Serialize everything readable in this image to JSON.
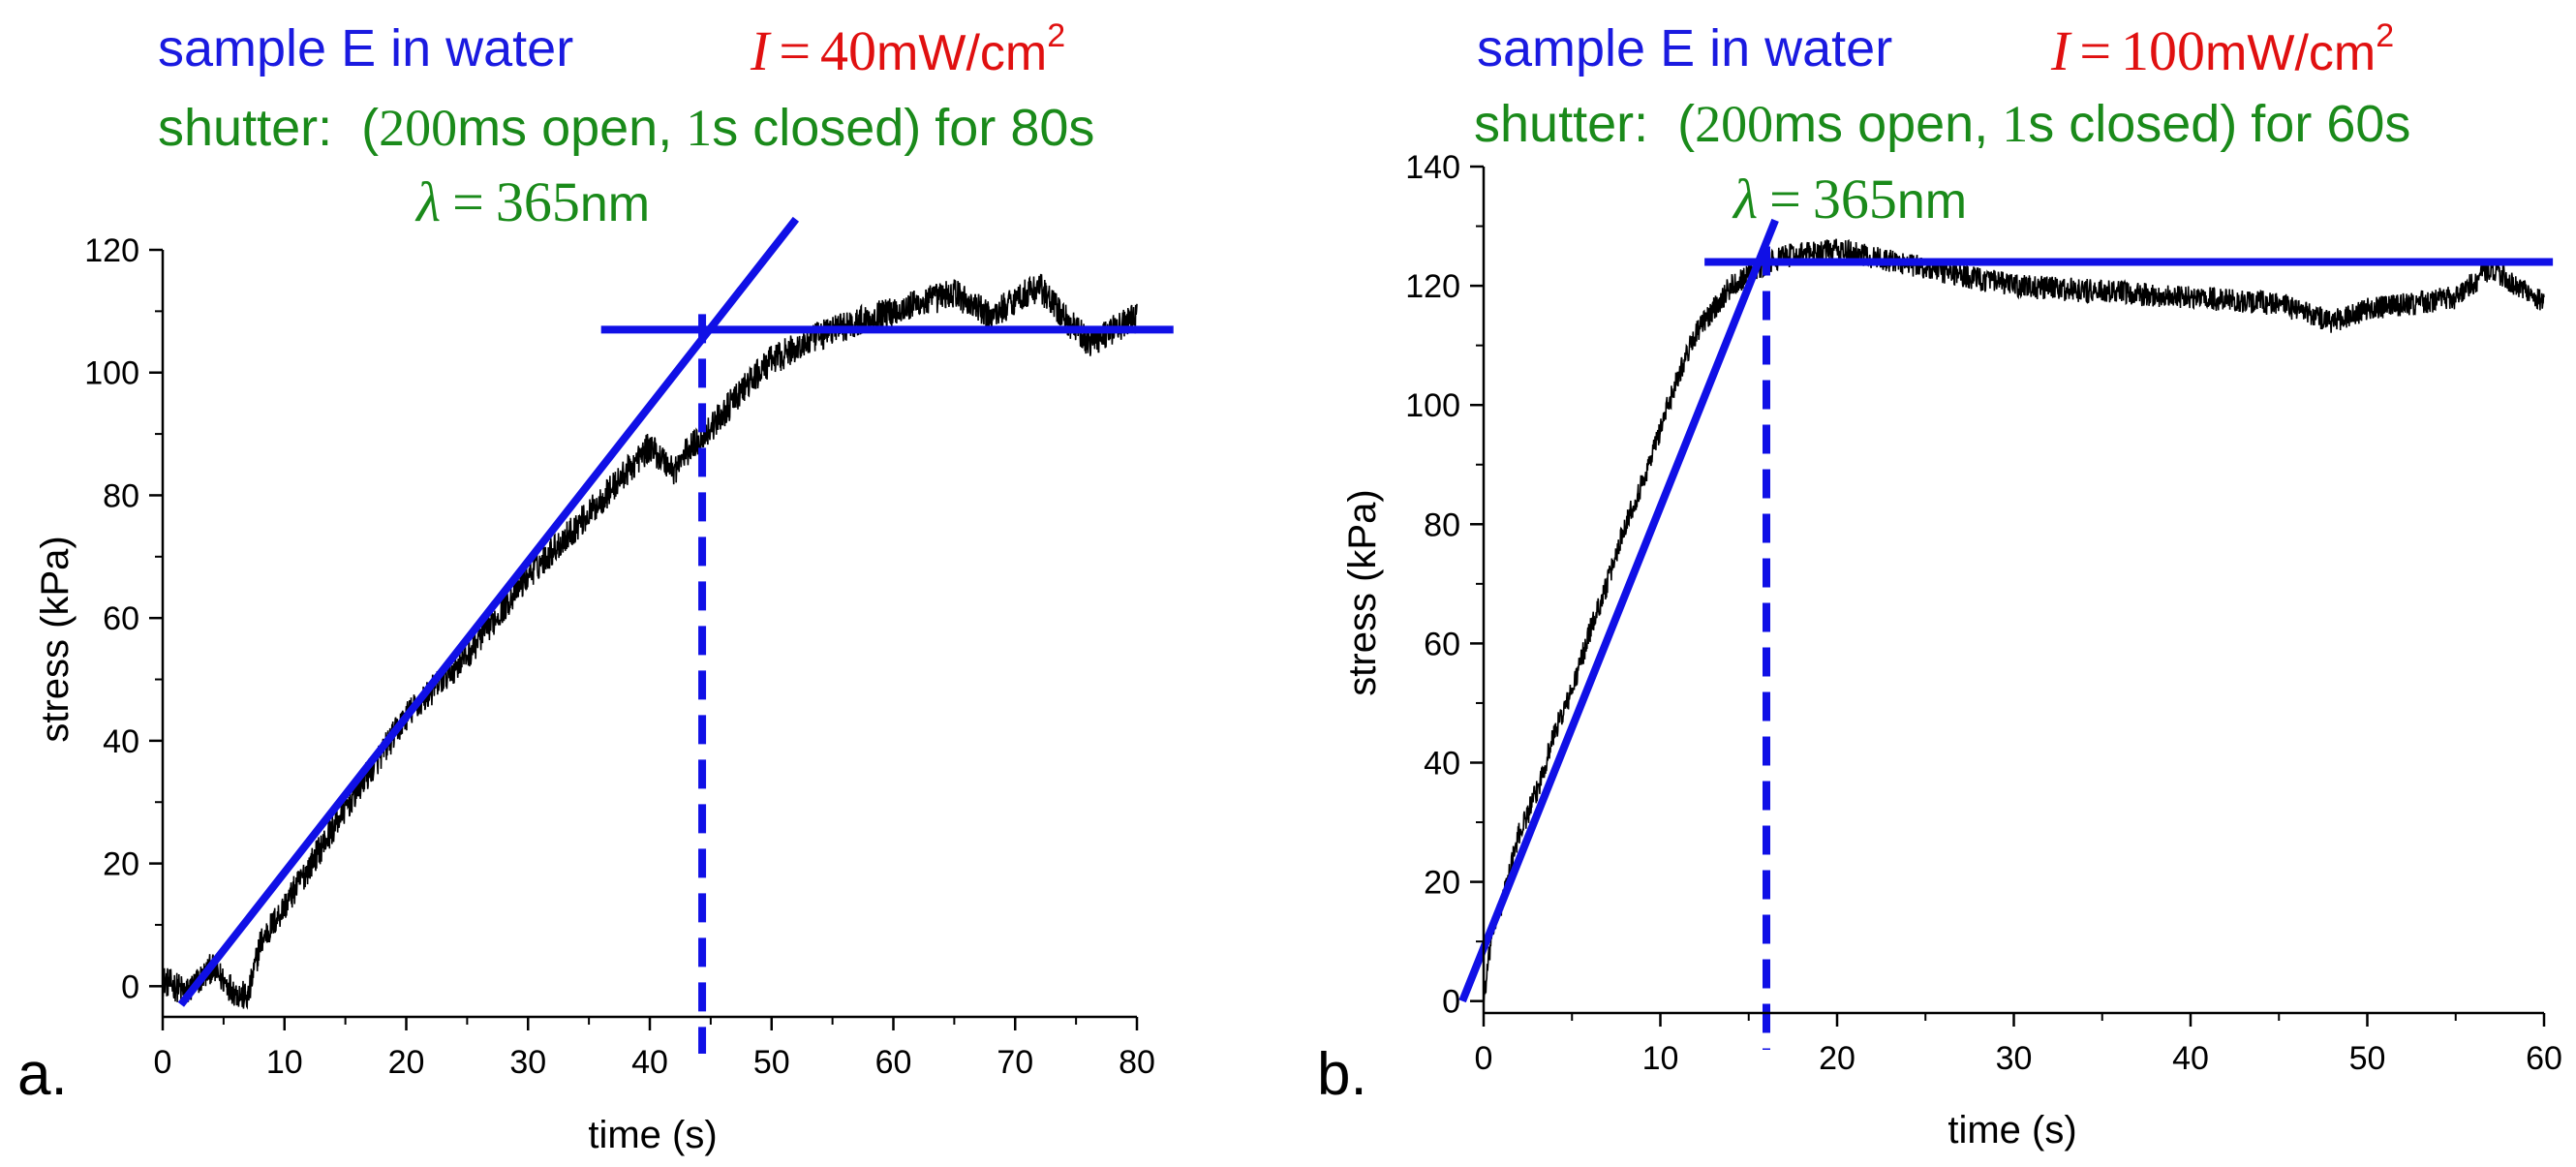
{
  "figure": {
    "colors": {
      "fit": "#1010e6",
      "title": "#1a1ae0",
      "intensity": "#e01010",
      "shutter": "#1a8a1a",
      "trace": "#000000",
      "axis": "#000000"
    }
  },
  "chart_data": [
    {
      "type": "line",
      "panel_label": "a.",
      "title": "sample E in water",
      "intensity": {
        "symbol": "I",
        "equals": "=",
        "value": "40",
        "unit": "mW/cm",
        "exponent": "2"
      },
      "shutter": {
        "prefix": "shutter:",
        "open_value": "200",
        "open_text": "ms open,",
        "closed_value": "1",
        "closed_text": "s closed)",
        "open_paren": "(",
        "for_text": "for 80s"
      },
      "wavelength": {
        "symbol": "λ",
        "equals": "=",
        "value": "365",
        "unit": "nm"
      },
      "xlabel": "time (s)",
      "ylabel": "stress (kPa)",
      "xlim": [
        0,
        80
      ],
      "ylim": [
        -5,
        120
      ],
      "xticks": [
        0,
        10,
        20,
        30,
        40,
        50,
        60,
        70,
        80
      ],
      "yticks": [
        0,
        20,
        40,
        60,
        80,
        100,
        120
      ],
      "xtick_labels": [
        "0",
        "10",
        "20",
        "30",
        "40",
        "50",
        "60",
        "70",
        "80"
      ],
      "ytick_labels": [
        "0",
        "20",
        "40",
        "60",
        "80",
        "100",
        "120"
      ],
      "trace_knots": [
        [
          0,
          1
        ],
        [
          2,
          -1
        ],
        [
          4,
          3
        ],
        [
          6,
          -1
        ],
        [
          7,
          -2
        ],
        [
          8,
          7
        ],
        [
          10,
          13
        ],
        [
          15,
          29
        ],
        [
          20,
          44
        ],
        [
          25,
          54
        ],
        [
          30,
          67
        ],
        [
          35,
          77
        ],
        [
          40,
          88
        ],
        [
          41,
          86
        ],
        [
          42,
          84
        ],
        [
          43,
          87
        ],
        [
          45,
          91
        ],
        [
          48,
          98
        ],
        [
          50,
          102
        ],
        [
          55,
          107
        ],
        [
          60,
          110
        ],
        [
          65,
          113
        ],
        [
          68,
          109
        ],
        [
          70,
          112
        ],
        [
          72,
          114
        ],
        [
          74,
          109
        ],
        [
          76,
          105
        ],
        [
          78,
          107
        ],
        [
          80,
          109
        ]
      ],
      "trace_noise": 2.5,
      "fit_line": {
        "x": [
          1.5,
          52
        ],
        "y": [
          -3,
          125
        ]
      },
      "plateau": {
        "x": [
          36,
          83
        ],
        "y": 107
      },
      "marker_time": 44.3
    },
    {
      "type": "line",
      "panel_label": "b.",
      "title": "sample E in water",
      "intensity": {
        "symbol": "I",
        "equals": "=",
        "value": "100",
        "unit": "mW/cm",
        "exponent": "2"
      },
      "shutter": {
        "prefix": "shutter:",
        "open_value": "200",
        "open_text": "ms open,",
        "closed_value": "1",
        "closed_text": "s closed)",
        "open_paren": "(",
        "for_text": "for 60s"
      },
      "wavelength": {
        "symbol": "λ",
        "equals": "=",
        "value": "365",
        "unit": "nm"
      },
      "xlabel": "time (s)",
      "ylabel": "stress (kPa)",
      "xlim": [
        0,
        60
      ],
      "ylim": [
        -2,
        140
      ],
      "xticks": [
        0,
        10,
        20,
        30,
        40,
        50,
        60
      ],
      "yticks": [
        0,
        20,
        40,
        60,
        80,
        100,
        120,
        140
      ],
      "xtick_labels": [
        "0",
        "10",
        "20",
        "30",
        "40",
        "50",
        "60"
      ],
      "ytick_labels": [
        "0",
        "20",
        "40",
        "60",
        "80",
        "100",
        "120",
        "140"
      ],
      "trace_knots": [
        [
          0,
          0
        ],
        [
          0.5,
          12
        ],
        [
          1,
          16
        ],
        [
          2,
          28
        ],
        [
          3,
          35
        ],
        [
          4,
          45
        ],
        [
          5,
          52
        ],
        [
          6,
          62
        ],
        [
          7,
          70
        ],
        [
          8,
          80
        ],
        [
          9,
          87
        ],
        [
          10,
          96
        ],
        [
          11,
          105
        ],
        [
          12,
          112
        ],
        [
          13,
          116
        ],
        [
          14,
          120
        ],
        [
          15,
          122
        ],
        [
          17,
          125
        ],
        [
          20,
          126
        ],
        [
          25,
          123
        ],
        [
          30,
          120
        ],
        [
          35,
          119
        ],
        [
          40,
          118
        ],
        [
          45,
          117
        ],
        [
          48,
          114
        ],
        [
          50,
          116
        ],
        [
          55,
          118
        ],
        [
          57,
          123
        ],
        [
          60,
          117
        ]
      ],
      "trace_noise": 2.0,
      "fit_line": {
        "x": [
          -1.2,
          16.5
        ],
        "y": [
          0,
          131
        ]
      },
      "plateau": {
        "x": [
          12.5,
          60.5
        ],
        "y": 124
      },
      "marker_time": 16.0
    }
  ]
}
